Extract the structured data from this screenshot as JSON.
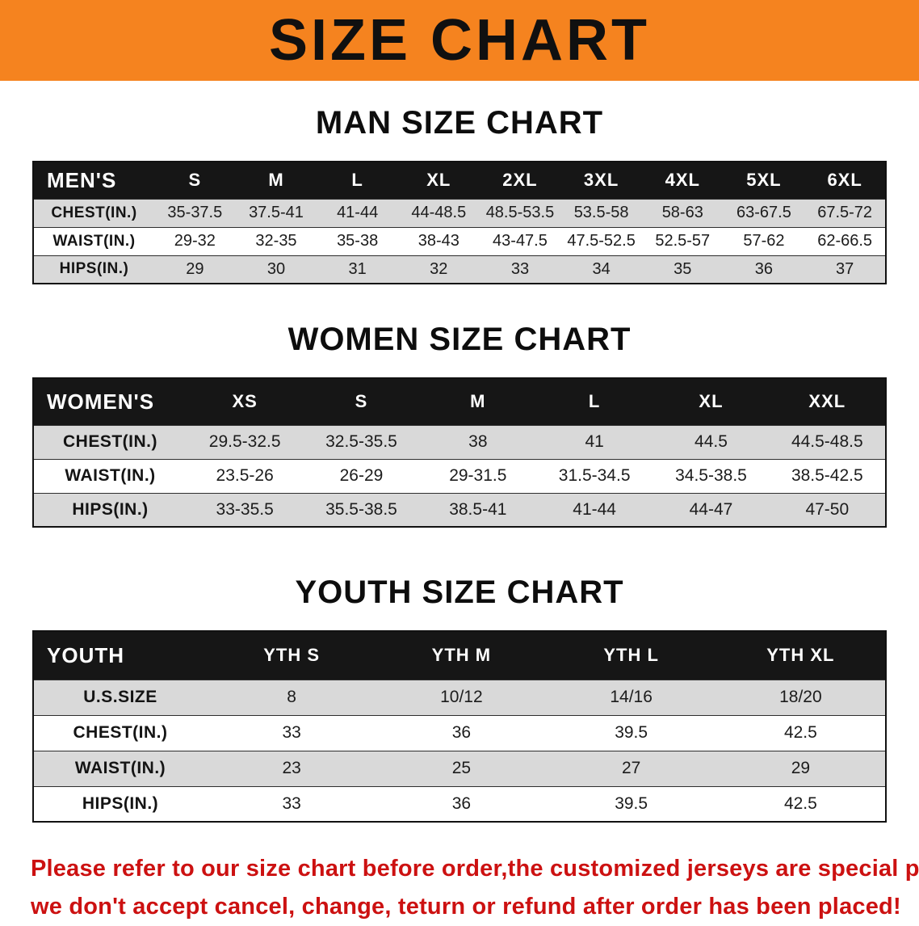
{
  "banner": {
    "title": "SIZE CHART"
  },
  "colors": {
    "accent_orange": "#f5831f",
    "header_black": "#161616",
    "stripe_gray": "#d9d9d9",
    "disclaimer_red": "#cc1111"
  },
  "sections": [
    {
      "heading": "MAN SIZE CHART",
      "table": {
        "name": "men",
        "header": [
          "MEN'S",
          "S",
          "M",
          "L",
          "XL",
          "2XL",
          "3XL",
          "4XL",
          "5XL",
          "6XL"
        ],
        "rows": [
          [
            "CHEST(IN.)",
            "35-37.5",
            "37.5-41",
            "41-44",
            "44-48.5",
            "48.5-53.5",
            "53.5-58",
            "58-63",
            "63-67.5",
            "67.5-72"
          ],
          [
            "WAIST(IN.)",
            "29-32",
            "32-35",
            "35-38",
            "38-43",
            "43-47.5",
            "47.5-52.5",
            "52.5-57",
            "57-62",
            "62-66.5"
          ],
          [
            "HIPS(IN.)",
            "29",
            "30",
            "31",
            "32",
            "33",
            "34",
            "35",
            "36",
            "37"
          ]
        ]
      }
    },
    {
      "heading": "WOMEN SIZE CHART",
      "table": {
        "name": "women",
        "header": [
          "WOMEN'S",
          "XS",
          "S",
          "M",
          "L",
          "XL",
          "XXL"
        ],
        "rows": [
          [
            "CHEST(IN.)",
            "29.5-32.5",
            "32.5-35.5",
            "38",
            "41",
            "44.5",
            "44.5-48.5"
          ],
          [
            "WAIST(IN.)",
            "23.5-26",
            "26-29",
            "29-31.5",
            "31.5-34.5",
            "34.5-38.5",
            "38.5-42.5"
          ],
          [
            "HIPS(IN.)",
            "33-35.5",
            "35.5-38.5",
            "38.5-41",
            "41-44",
            "44-47",
            "47-50"
          ]
        ]
      }
    },
    {
      "heading": "YOUTH SIZE CHART",
      "table": {
        "name": "youth",
        "header": [
          "YOUTH",
          "YTH S",
          "YTH M",
          "YTH L",
          "YTH XL"
        ],
        "rows": [
          [
            "U.S.SIZE",
            "8",
            "10/12",
            "14/16",
            "18/20"
          ],
          [
            "CHEST(IN.)",
            "33",
            "36",
            "39.5",
            "42.5"
          ],
          [
            "WAIST(IN.)",
            "23",
            "25",
            "27",
            "29"
          ],
          [
            "HIPS(IN.)",
            "33",
            "36",
            "39.5",
            "42.5"
          ]
        ]
      }
    }
  ],
  "disclaimer": {
    "line1": "Please refer to our size chart before order,the customized jerseys are special products,",
    "line2": "we don't accept cancel, change, teturn or refund after order has been placed!"
  }
}
